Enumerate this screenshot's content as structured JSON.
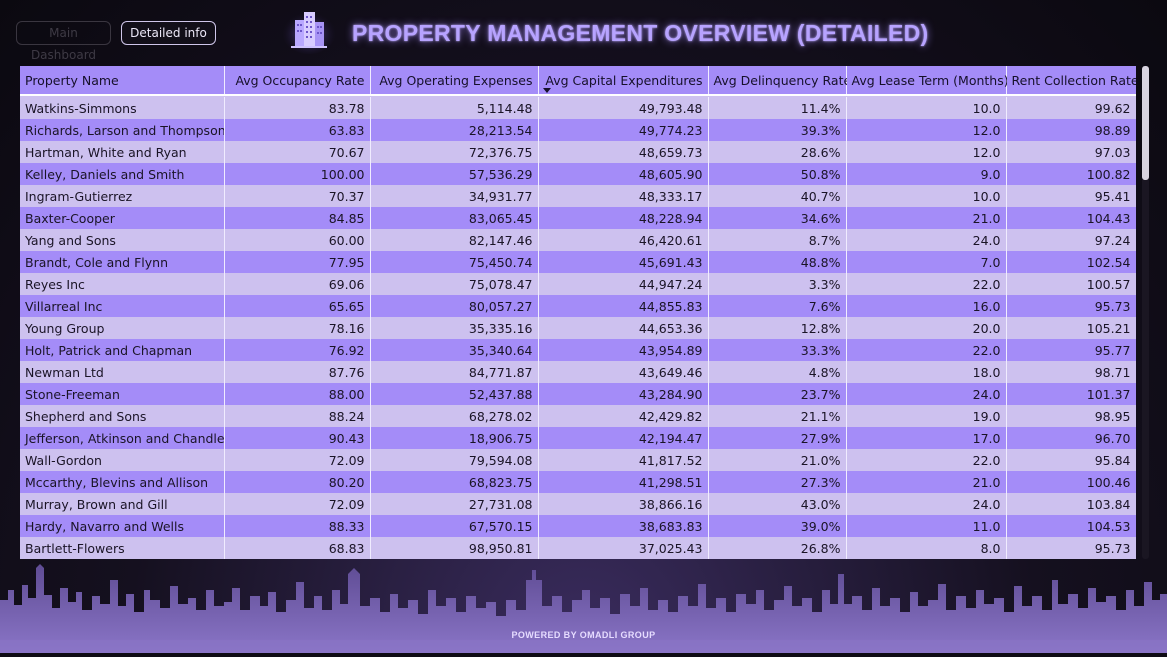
{
  "nav": {
    "main_dashboard": "Main Dashboard",
    "detailed_info": "Detailed info"
  },
  "header": {
    "title": "PROPERTY MANAGEMENT OVERVIEW (DETAILED)",
    "logo_icon": "buildings-icon"
  },
  "colors": {
    "header_bg": "#a48cf8",
    "row_light": "#cdc1ef",
    "row_dark": "#a48cf8",
    "title": "#b7a3ff",
    "page_bg": "#0e0b14"
  },
  "table": {
    "columns": [
      "Property Name",
      "Avg Occupancy Rate",
      "Avg Operating Expenses",
      "Avg Capital Expenditures",
      "Avg Delinquency Rate",
      "Avg Lease Term (Months)",
      "Rent Collection Rate"
    ],
    "sorted_column": "Avg Capital Expenditures",
    "sort_direction": "descending",
    "rows": [
      [
        "Watkins-Simmons",
        "83.78",
        "5,114.48",
        "49,793.48",
        "11.4%",
        "10.0",
        "99.62"
      ],
      [
        "Richards, Larson and Thompson",
        "63.83",
        "28,213.54",
        "49,774.23",
        "39.3%",
        "12.0",
        "98.89"
      ],
      [
        "Hartman, White and Ryan",
        "70.67",
        "72,376.75",
        "48,659.73",
        "28.6%",
        "12.0",
        "97.03"
      ],
      [
        "Kelley, Daniels and Smith",
        "100.00",
        "57,536.29",
        "48,605.90",
        "50.8%",
        "9.0",
        "100.82"
      ],
      [
        "Ingram-Gutierrez",
        "70.37",
        "34,931.77",
        "48,333.17",
        "40.7%",
        "10.0",
        "95.41"
      ],
      [
        "Baxter-Cooper",
        "84.85",
        "83,065.45",
        "48,228.94",
        "34.6%",
        "21.0",
        "104.43"
      ],
      [
        "Yang and Sons",
        "60.00",
        "82,147.46",
        "46,420.61",
        "8.7%",
        "24.0",
        "97.24"
      ],
      [
        "Brandt, Cole and Flynn",
        "77.95",
        "75,450.74",
        "45,691.43",
        "48.8%",
        "7.0",
        "102.54"
      ],
      [
        "Reyes Inc",
        "69.06",
        "75,078.47",
        "44,947.24",
        "3.3%",
        "22.0",
        "100.57"
      ],
      [
        "Villarreal Inc",
        "65.65",
        "80,057.27",
        "44,855.83",
        "7.6%",
        "16.0",
        "95.73"
      ],
      [
        "Young Group",
        "78.16",
        "35,335.16",
        "44,653.36",
        "12.8%",
        "20.0",
        "105.21"
      ],
      [
        "Holt, Patrick and Chapman",
        "76.92",
        "35,340.64",
        "43,954.89",
        "33.3%",
        "22.0",
        "95.77"
      ],
      [
        "Newman Ltd",
        "87.76",
        "84,771.87",
        "43,649.46",
        "4.8%",
        "18.0",
        "98.71"
      ],
      [
        "Stone-Freeman",
        "88.00",
        "52,437.88",
        "43,284.90",
        "23.7%",
        "24.0",
        "101.37"
      ],
      [
        "Shepherd and Sons",
        "88.24",
        "68,278.02",
        "42,429.82",
        "21.1%",
        "19.0",
        "98.95"
      ],
      [
        "Jefferson, Atkinson and Chandler",
        "90.43",
        "18,906.75",
        "42,194.47",
        "27.9%",
        "17.0",
        "96.70"
      ],
      [
        "Wall-Gordon",
        "72.09",
        "79,594.08",
        "41,817.52",
        "21.0%",
        "22.0",
        "95.84"
      ],
      [
        "Mccarthy, Blevins and Allison",
        "80.20",
        "68,823.75",
        "41,298.51",
        "27.3%",
        "21.0",
        "100.46"
      ],
      [
        "Murray, Brown and Gill",
        "72.09",
        "27,731.08",
        "38,866.16",
        "43.0%",
        "24.0",
        "103.84"
      ],
      [
        "Hardy, Navarro and Wells",
        "88.33",
        "67,570.15",
        "38,683.83",
        "39.0%",
        "11.0",
        "104.53"
      ],
      [
        "Bartlett-Flowers",
        "68.83",
        "98,950.81",
        "37,025.43",
        "26.8%",
        "8.0",
        "95.73"
      ]
    ]
  },
  "footer": {
    "text": "POWERED BY OMADLI GROUP"
  }
}
